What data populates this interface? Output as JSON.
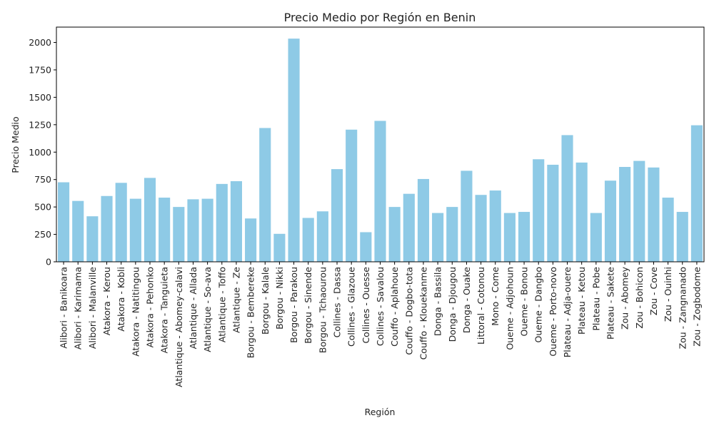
{
  "chart_data": {
    "type": "bar",
    "title": "Precio Medio por Región en Benin",
    "xlabel": "Región",
    "ylabel": "Precio Medio",
    "ylim": [
      0,
      2140
    ],
    "yticks": [
      0,
      250,
      500,
      750,
      1000,
      1250,
      1500,
      1750,
      2000
    ],
    "grid": false,
    "bar_color": "#8ecae6",
    "categories": [
      "Alibori - Banikoara",
      "Alibori - Karimama",
      "Alibori - Malanville",
      "Atakora - Kerou",
      "Atakora - Kobli",
      "Atakora - Natitingou",
      "Atakora - Pehonko",
      "Atakora - Tanguieta",
      "Atlantique - Abomey-calavi",
      "Atlantique - Allada",
      "Atlantique - So-ava",
      "Atlantique - Toffo",
      "Atlantique - Ze",
      "Borgou - Bembereke",
      "Borgou - Kalale",
      "Borgou - Nikki",
      "Borgou - Parakou",
      "Borgou - Sinende",
      "Borgou - Tchaourou",
      "Collines - Dassa",
      "Collines - Glazoue",
      "Collines - Ouesse",
      "Collines - Savalou",
      "Couffo - Aplahoue",
      "Couffo - Dogbo-tota",
      "Couffo - Klouekanme",
      "Donga - Bassila",
      "Donga - Djougou",
      "Donga - Ouake",
      "Littoral - Cotonou",
      "Mono - Come",
      "Oueme - Adjohoun",
      "Oueme - Bonou",
      "Oueme - Dangbo",
      "Oueme - Porto-novo",
      "Plateau - Adja-ouere",
      "Plateau - Ketou",
      "Plateau - Pobe",
      "Plateau - Sakete",
      "Zou - Abomey",
      "Zou - Bohicon",
      "Zou - Cove",
      "Zou - Ouinhi",
      "Zou - Zangnanado",
      "Zou - Zogbodome"
    ],
    "values": [
      725,
      555,
      415,
      600,
      720,
      575,
      765,
      585,
      500,
      570,
      575,
      710,
      735,
      395,
      1220,
      255,
      2035,
      400,
      460,
      845,
      1205,
      270,
      1285,
      500,
      620,
      755,
      445,
      500,
      830,
      610,
      650,
      445,
      455,
      935,
      885,
      1155,
      905,
      445,
      740,
      865,
      920,
      860,
      585,
      455,
      1245
    ]
  }
}
